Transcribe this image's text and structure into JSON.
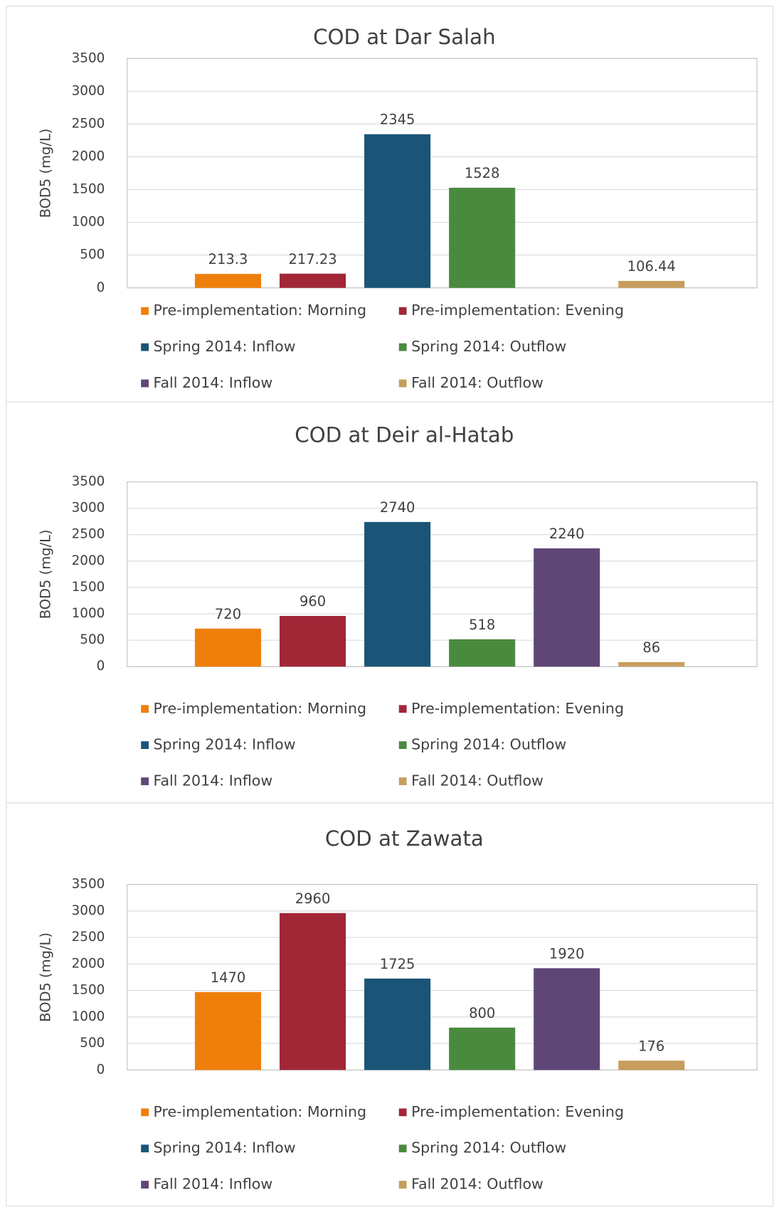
{
  "chart_data": [
    {
      "type": "bar",
      "title": "COD at Dar Salah",
      "y_label": "BOD5 (mg/L)",
      "ylim": [
        0,
        3500
      ],
      "yticks": [
        0,
        500,
        1000,
        1500,
        2000,
        2500,
        3000,
        3500
      ],
      "grid": true,
      "series": [
        {
          "name": "Pre-implementation: Morning",
          "color": "#ef7f0b",
          "values": [
            213.3
          ]
        },
        {
          "name": "Pre-implementation: Evening",
          "color": "#a12737",
          "values": [
            217.23
          ]
        },
        {
          "name": "Spring 2014: Inflow",
          "color": "#1a5577",
          "values": [
            2345
          ]
        },
        {
          "name": "Spring 2014: Outflow",
          "color": "#4a8a3f",
          "values": [
            1528
          ]
        },
        {
          "name": "Fall 2014: Inflow",
          "color": "#5e4777",
          "values": [
            null
          ]
        },
        {
          "name": "Fall 2014: Outflow",
          "color": "#c79d5e",
          "values": [
            106.44
          ]
        }
      ]
    },
    {
      "type": "bar",
      "title": "COD at Deir al-Hatab",
      "y_label": "BOD5 (mg/L)",
      "ylim": [
        0,
        3500
      ],
      "yticks": [
        0,
        500,
        1000,
        1500,
        2000,
        2500,
        3000,
        3500
      ],
      "grid": true,
      "series": [
        {
          "name": "Pre-implementation: Morning",
          "color": "#ef7f0b",
          "values": [
            720
          ]
        },
        {
          "name": "Pre-implementation: Evening",
          "color": "#a12737",
          "values": [
            960
          ]
        },
        {
          "name": "Spring 2014: Inflow",
          "color": "#1a5577",
          "values": [
            2740
          ]
        },
        {
          "name": "Spring 2014: Outflow",
          "color": "#4a8a3f",
          "values": [
            518
          ]
        },
        {
          "name": "Fall 2014: Inflow",
          "color": "#5e4777",
          "values": [
            2240
          ]
        },
        {
          "name": "Fall 2014: Outflow",
          "color": "#c79d5e",
          "values": [
            86
          ]
        }
      ]
    },
    {
      "type": "bar",
      "title": "COD at Zawata",
      "y_label": "BOD5 (mg/L)",
      "ylim": [
        0,
        3500
      ],
      "yticks": [
        0,
        500,
        1000,
        1500,
        2000,
        2500,
        3000,
        3500
      ],
      "grid": true,
      "series": [
        {
          "name": "Pre-implementation: Morning",
          "color": "#ef7f0b",
          "values": [
            1470
          ]
        },
        {
          "name": "Pre-implementation: Evening",
          "color": "#a12737",
          "values": [
            2960
          ]
        },
        {
          "name": "Spring 2014: Inflow",
          "color": "#1a5577",
          "values": [
            1725
          ]
        },
        {
          "name": "Spring 2014: Outflow",
          "color": "#4a8a3f",
          "values": [
            800
          ]
        },
        {
          "name": "Fall 2014: Inflow",
          "color": "#5e4777",
          "values": [
            1920
          ]
        },
        {
          "name": "Fall 2014: Outflow",
          "color": "#c79d5e",
          "values": [
            176
          ]
        }
      ]
    }
  ]
}
